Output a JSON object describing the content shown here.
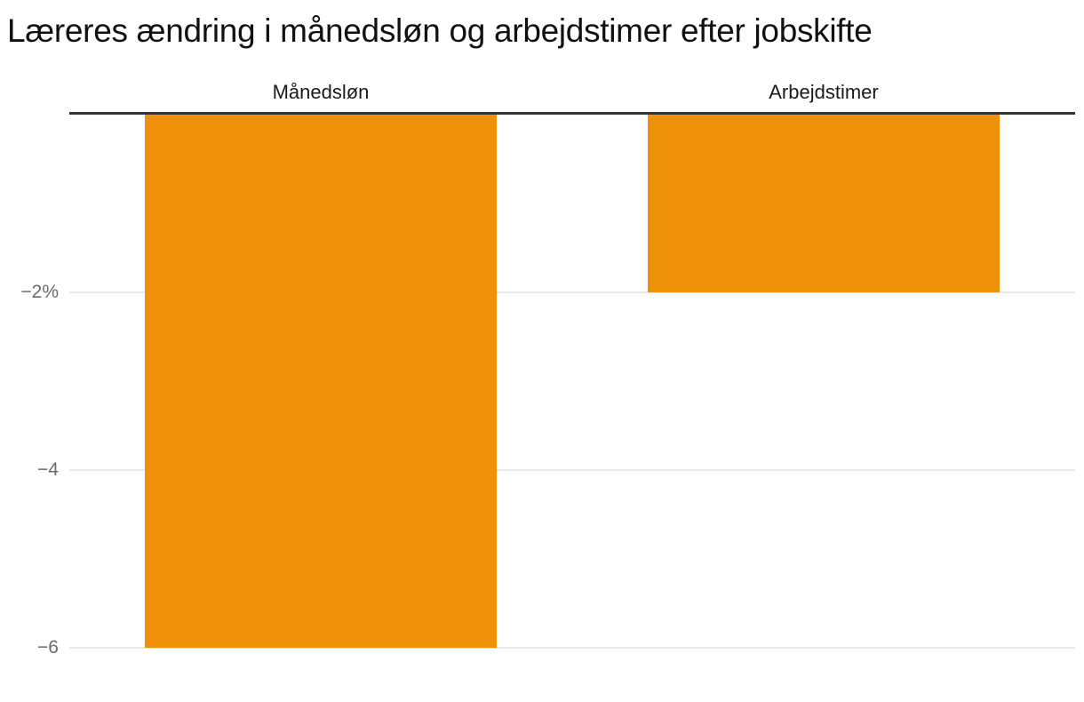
{
  "title": "Læreres ændring i månedsløn og arbejdstimer efter jobskifte",
  "chart_data": {
    "type": "bar",
    "title": "Læreres ændring i månedsløn og arbejdstimer efter jobskifte",
    "categories": [
      "Månedsløn",
      "Arbejdstimer"
    ],
    "values": [
      -6,
      -2
    ],
    "unit": "%",
    "orientation": "vertical",
    "baseline": 0,
    "ylim": [
      0,
      -6
    ],
    "yticks": [
      {
        "value": -2,
        "label": "−2%"
      },
      {
        "value": -4,
        "label": "−4"
      },
      {
        "value": -6,
        "label": "−6"
      }
    ],
    "grid": "horizontal-light",
    "legend": "none",
    "xlabel": "",
    "ylabel": ""
  },
  "colors": {
    "bar": "#F0910C",
    "zero_line": "#333333",
    "gridline": "#e8e8e8",
    "tick_label": "#6b6b6b",
    "category_label": "#1a1a1a",
    "title": "#111111",
    "background": "#ffffff"
  }
}
